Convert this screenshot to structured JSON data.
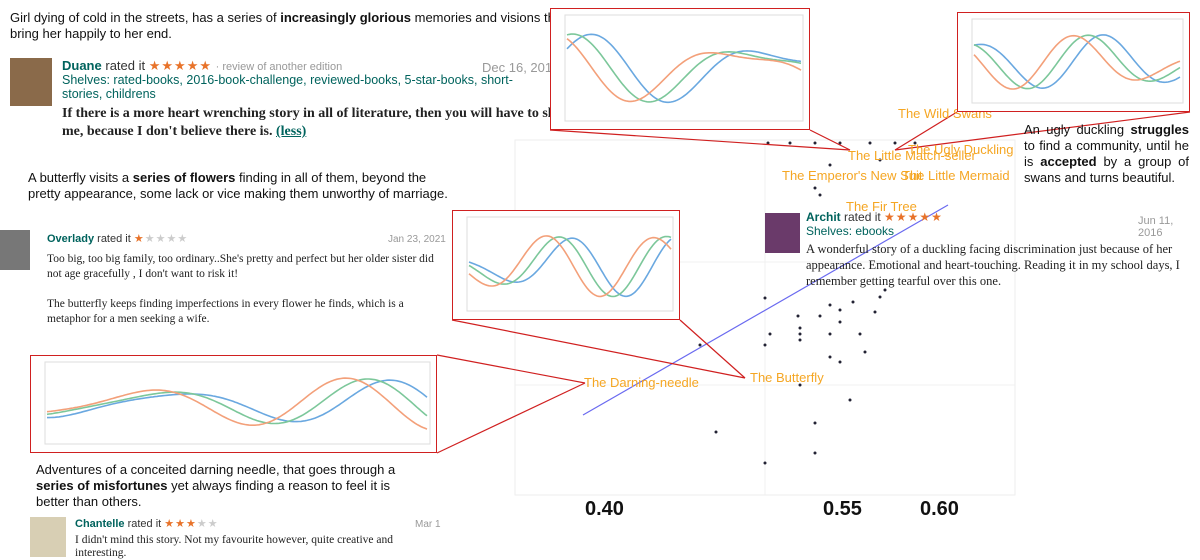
{
  "reviews": [
    {
      "summary": [
        {
          "text": "Girl dying of cold in the streets, has a series of ",
          "bold": false
        },
        {
          "text": "increasingly glorious",
          "bold": true
        },
        {
          "text": " memories and visions that bring her happily to her end.",
          "bold": false
        }
      ],
      "user": "Duane",
      "rated": "rated it",
      "stars_filled": "★★★★★",
      "stars_empty": "",
      "edition": "· review of another edition",
      "date": "Dec 16, 2015",
      "shelves": "Shelves: rated-books, 2016-book-challenge, reviewed-books, 5-star-books, short-stories, childrens",
      "text": "If there is a more heart wrenching story in all of literature, then you will have to show me, because I don't believe there is.",
      "more": "(less)"
    },
    {
      "summary": [
        {
          "text": "A butterfly visits a ",
          "bold": false
        },
        {
          "text": "series of flowers",
          "bold": true
        },
        {
          "text": " finding in all of them, beyond the pretty appearance, some lack or vice making them unworthy of marriage.",
          "bold": false
        }
      ],
      "user": "Overlady",
      "rated": "rated it",
      "stars_filled": "★",
      "stars_empty": "★★★★",
      "date": "Jan 23, 2021",
      "text": "Too big, too big family, too ordinary..She's pretty and perfect but her older sister did not age gracefully , I don't want to risk it!",
      "text2": "The butterfly keeps finding imperfections in every flower he finds, which is a metaphor for a men seeking a wife."
    },
    {
      "summary": [
        {
          "text": "Adventures of a conceited darning needle, that goes through a ",
          "bold": false
        },
        {
          "text": "series of misfortunes",
          "bold": true
        },
        {
          "text": " yet always finding a reason to feel it is better than others.",
          "bold": false
        }
      ],
      "user": "Chantelle",
      "rated": "rated it",
      "stars_filled": "★★★",
      "stars_empty": "★★",
      "date": "Mar 1",
      "text": "I didn't mind this story. Not my favourite however, quite creative and interesting."
    },
    {
      "summary": [
        {
          "text": "An ugly duckling ",
          "bold": false
        },
        {
          "text": "struggles",
          "bold": true
        },
        {
          "text": " to find a community, until he is ",
          "bold": false
        },
        {
          "text": "accepted",
          "bold": true
        },
        {
          "text": " by a group of swans and turns beautiful.",
          "bold": false
        }
      ],
      "user": "Archit",
      "rated": "rated it",
      "stars_filled": "★★★★★",
      "stars_empty": "",
      "date": "Jun 11, 2016",
      "shelves": "Shelves: ebooks",
      "text": "A wonderful story of a duckling facing discrimination just because of her appearance. Emotional and heart-touching. Reading it in my school days, I remember getting tearful over this one."
    }
  ],
  "scatter": {
    "labels": [
      "The Wild Swans",
      "The Little Match-seller",
      "The Ugly Duckling",
      "The Emperor's New Suit",
      "The Little Mermaid",
      "The Fir Tree",
      "The Darning-needle",
      "The Butterfly"
    ],
    "xtick_labels": [
      "0.40",
      "0.55",
      "0.60"
    ]
  }
}
